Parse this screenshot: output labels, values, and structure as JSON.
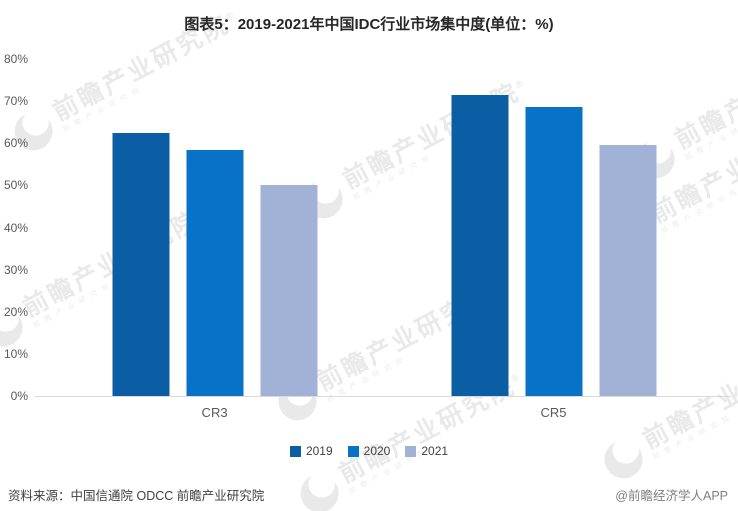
{
  "chart_data": {
    "type": "bar",
    "title": "图表5：2019-2021年中国IDC行业市场集中度(单位：%)",
    "categories": [
      "CR3",
      "CR5"
    ],
    "series": [
      {
        "name": "2019",
        "color": "#0B5EA4",
        "values": [
          62.5,
          71.5
        ]
      },
      {
        "name": "2020",
        "color": "#0873C6",
        "values": [
          58.5,
          68.5
        ]
      },
      {
        "name": "2021",
        "color": "#A2B2D6",
        "values": [
          50.0,
          59.5
        ]
      }
    ],
    "xlabel": "",
    "ylabel": "",
    "ylim": [
      0,
      80
    ],
    "y_tick_step": 10,
    "y_ticks": [
      "0%",
      "10%",
      "20%",
      "30%",
      "40%",
      "50%",
      "60%",
      "70%",
      "80%"
    ],
    "grid": false,
    "legend_position": "bottom",
    "axis_line_color": "#d9d9d9"
  },
  "footer": {
    "source": "资料来源：中国信通院 ODCC 前瞻产业研究院",
    "attribution": "@前瞻经济学人APP"
  },
  "watermark": {
    "text": "前瞻产业研究院",
    "registered_mark": "®",
    "subtext": "前瞻产业研究院"
  }
}
